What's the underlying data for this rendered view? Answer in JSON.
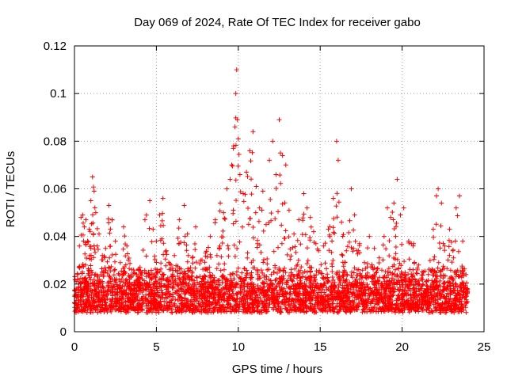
{
  "chart_data": {
    "type": "scatter",
    "title": "Day 069 of 2024, Rate Of TEC Index for receiver gabo",
    "xlabel": "GPS time / hours",
    "ylabel": "ROTI / TECUs",
    "xlim": [
      0,
      25
    ],
    "ylim": [
      0,
      0.12
    ],
    "x_ticks": [
      0,
      5,
      10,
      15,
      20,
      25
    ],
    "x_tick_labels": [
      "0",
      "5",
      "10",
      "15",
      "20",
      "25"
    ],
    "y_ticks": [
      0,
      0.02,
      0.04,
      0.06,
      0.08,
      0.1,
      0.12
    ],
    "y_tick_labels": [
      "0",
      "0.02",
      "0.04",
      "0.06",
      "0.08",
      "0.1",
      "0.12"
    ],
    "grid": true,
    "marker": "+",
    "series": [
      {
        "name": "ROTI",
        "color": "#ff0000",
        "points": [
          [
            0.0,
            0.012
          ],
          [
            0.1,
            0.018
          ],
          [
            0.2,
            0.024
          ],
          [
            0.3,
            0.036
          ],
          [
            0.4,
            0.048
          ],
          [
            0.5,
            0.049
          ],
          [
            0.6,
            0.044
          ],
          [
            0.7,
            0.047
          ],
          [
            0.8,
            0.038
          ],
          [
            0.9,
            0.043
          ],
          [
            1.0,
            0.055
          ],
          [
            1.1,
            0.065
          ],
          [
            1.2,
            0.059
          ],
          [
            1.3,
            0.05
          ],
          [
            1.5,
            0.041
          ],
          [
            1.7,
            0.032
          ],
          [
            1.9,
            0.035
          ],
          [
            2.1,
            0.053
          ],
          [
            2.3,
            0.047
          ],
          [
            2.5,
            0.038
          ],
          [
            2.8,
            0.029
          ],
          [
            3.0,
            0.044
          ],
          [
            3.2,
            0.036
          ],
          [
            3.5,
            0.026
          ],
          [
            3.8,
            0.024
          ],
          [
            4.0,
            0.027
          ],
          [
            4.3,
            0.047
          ],
          [
            4.6,
            0.055
          ],
          [
            4.8,
            0.043
          ],
          [
            5.0,
            0.038
          ],
          [
            5.2,
            0.049
          ],
          [
            5.4,
            0.056
          ],
          [
            5.6,
            0.034
          ],
          [
            5.9,
            0.028
          ],
          [
            6.1,
            0.032
          ],
          [
            6.4,
            0.047
          ],
          [
            6.7,
            0.053
          ],
          [
            6.9,
            0.041
          ],
          [
            7.2,
            0.031
          ],
          [
            7.4,
            0.044
          ],
          [
            7.7,
            0.03
          ],
          [
            8.0,
            0.033
          ],
          [
            8.3,
            0.04
          ],
          [
            8.6,
            0.047
          ],
          [
            8.9,
            0.054
          ],
          [
            9.1,
            0.05
          ],
          [
            9.3,
            0.06
          ],
          [
            9.5,
            0.064
          ],
          [
            9.6,
            0.07
          ],
          [
            9.7,
            0.077
          ],
          [
            9.8,
            0.086
          ],
          [
            9.85,
            0.1
          ],
          [
            9.9,
            0.11
          ],
          [
            9.95,
            0.089
          ],
          [
            10.0,
            0.081
          ],
          [
            10.1,
            0.066
          ],
          [
            10.3,
            0.058
          ],
          [
            10.5,
            0.067
          ],
          [
            10.7,
            0.076
          ],
          [
            10.9,
            0.084
          ],
          [
            11.1,
            0.061
          ],
          [
            11.3,
            0.052
          ],
          [
            11.5,
            0.059
          ],
          [
            11.7,
            0.045
          ],
          [
            11.9,
            0.072
          ],
          [
            12.1,
            0.08
          ],
          [
            12.3,
            0.066
          ],
          [
            12.5,
            0.089
          ],
          [
            12.7,
            0.074
          ],
          [
            12.9,
            0.07
          ],
          [
            13.1,
            0.051
          ],
          [
            13.4,
            0.041
          ],
          [
            13.7,
            0.047
          ],
          [
            14.0,
            0.058
          ],
          [
            14.2,
            0.052
          ],
          [
            14.4,
            0.048
          ],
          [
            14.6,
            0.042
          ],
          [
            14.9,
            0.034
          ],
          [
            15.2,
            0.036
          ],
          [
            15.5,
            0.043
          ],
          [
            15.8,
            0.056
          ],
          [
            16.0,
            0.08
          ],
          [
            16.1,
            0.072
          ],
          [
            16.3,
            0.046
          ],
          [
            16.6,
            0.034
          ],
          [
            16.9,
            0.06
          ],
          [
            17.1,
            0.049
          ],
          [
            17.4,
            0.037
          ],
          [
            17.7,
            0.029
          ],
          [
            18.0,
            0.04
          ],
          [
            18.3,
            0.035
          ],
          [
            18.6,
            0.031
          ],
          [
            18.9,
            0.04
          ],
          [
            19.1,
            0.052
          ],
          [
            19.3,
            0.048
          ],
          [
            19.5,
            0.054
          ],
          [
            19.7,
            0.064
          ],
          [
            19.9,
            0.049
          ],
          [
            20.1,
            0.052
          ],
          [
            20.4,
            0.038
          ],
          [
            20.7,
            0.037
          ],
          [
            21.0,
            0.028
          ],
          [
            21.3,
            0.025
          ],
          [
            21.6,
            0.024
          ],
          [
            21.9,
            0.043
          ],
          [
            22.1,
            0.057
          ],
          [
            22.2,
            0.06
          ],
          [
            22.4,
            0.054
          ],
          [
            22.6,
            0.036
          ],
          [
            22.9,
            0.043
          ],
          [
            23.1,
            0.034
          ],
          [
            23.3,
            0.052
          ],
          [
            23.5,
            0.057
          ],
          [
            23.7,
            0.038
          ],
          [
            23.9,
            0.024
          ],
          [
            24.0,
            0.018
          ]
        ],
        "baseline_band": [
          0.005,
          0.025
        ]
      }
    ]
  }
}
